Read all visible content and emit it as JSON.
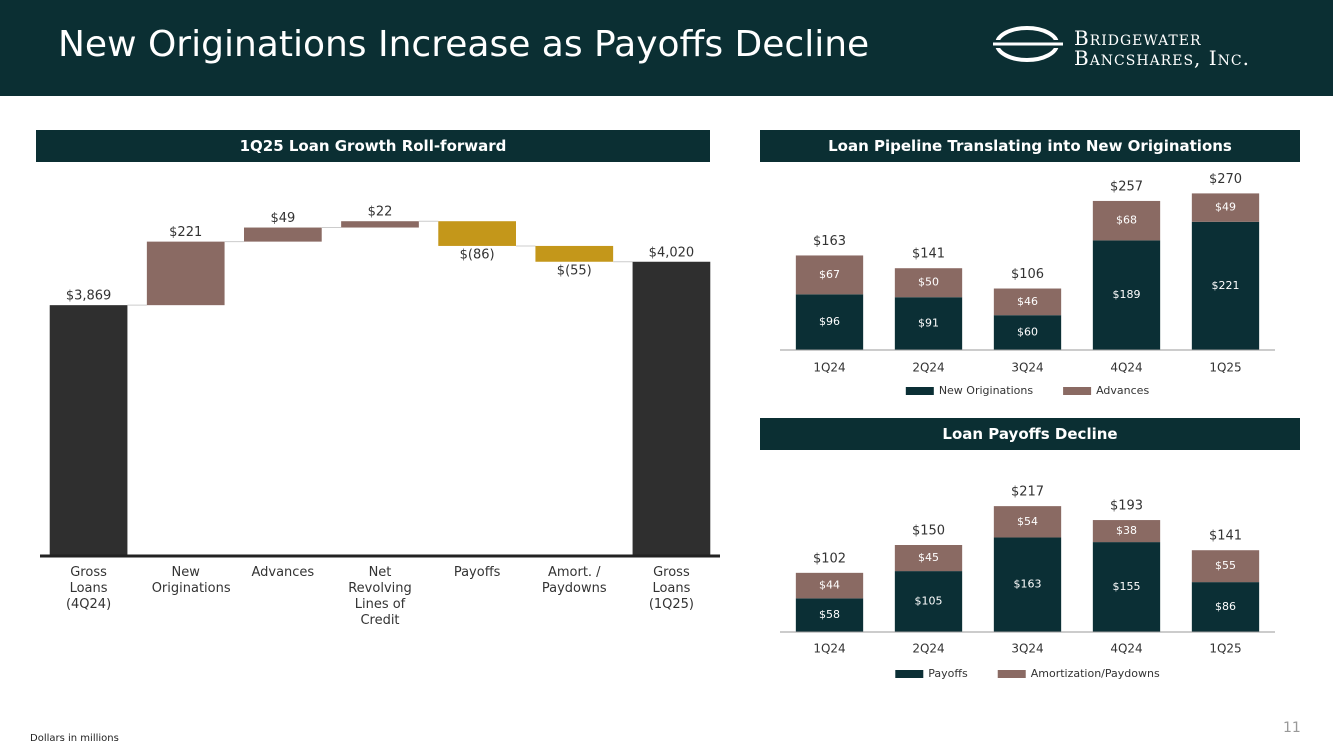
{
  "header": {
    "title": "New Originations Increase as Payoffs Decline",
    "logo_line1": "Bridgewater",
    "logo_line2": "Bancshares, Inc."
  },
  "chart_data": [
    {
      "type": "waterfall",
      "title": "1Q25 Loan Growth Roll-forward",
      "categories": [
        "Gross Loans (4Q24)",
        "New Originations",
        "Advances",
        "Net Revolving Lines of Credit",
        "Payoffs",
        "Amort. / Paydowns",
        "Gross Loans (1Q25)"
      ],
      "measures": [
        "absolute",
        "relative",
        "relative",
        "relative",
        "relative",
        "relative",
        "total"
      ],
      "values": [
        3869,
        221,
        49,
        22,
        -86,
        -55,
        4020
      ],
      "value_labels": [
        "$3,869",
        "$221",
        "$49",
        "$22",
        "$(86)",
        "$(55)",
        "$4,020"
      ],
      "colors": [
        "#2f2f2f",
        "#8a6a63",
        "#8a6a63",
        "#8a6a63",
        "#c4971a",
        "#c4971a",
        "#2f2f2f"
      ],
      "ylim": [
        3000,
        4200
      ]
    },
    {
      "type": "stacked_bar",
      "title": "Loan Pipeline Translating into New Originations",
      "categories": [
        "1Q24",
        "2Q24",
        "3Q24",
        "4Q24",
        "1Q25"
      ],
      "series": [
        {
          "name": "New Originations",
          "color": "#0b2f35",
          "values": [
            96,
            91,
            60,
            189,
            221
          ],
          "value_labels": [
            "$96",
            "$91",
            "$60",
            "$189",
            "$221"
          ]
        },
        {
          "name": "Advances",
          "color": "#8a6a63",
          "values": [
            67,
            50,
            46,
            68,
            49
          ],
          "value_labels": [
            "$67",
            "$50",
            "$46",
            "$68",
            "$49"
          ]
        }
      ],
      "totals": [
        163,
        141,
        106,
        257,
        270
      ],
      "total_labels": [
        "$163",
        "$141",
        "$106",
        "$257",
        "$270"
      ],
      "ylim": [
        0,
        300
      ],
      "legend": "bottom"
    },
    {
      "type": "stacked_bar",
      "title": "Loan Payoffs Decline",
      "categories": [
        "1Q24",
        "2Q24",
        "3Q24",
        "4Q24",
        "1Q25"
      ],
      "series": [
        {
          "name": "Payoffs",
          "color": "#0b2f35",
          "values": [
            58,
            105,
            163,
            155,
            86
          ],
          "value_labels": [
            "$58",
            "$105",
            "$163",
            "$155",
            "$86"
          ]
        },
        {
          "name": "Amortization/Paydowns",
          "color": "#8a6a63",
          "values": [
            44,
            45,
            54,
            38,
            55
          ],
          "value_labels": [
            "$44",
            "$45",
            "$54",
            "$38",
            "$55"
          ]
        }
      ],
      "totals": [
        102,
        150,
        217,
        193,
        141
      ],
      "total_labels": [
        "$102",
        "$150",
        "$217",
        "$193",
        "$141"
      ],
      "ylim": [
        0,
        250
      ],
      "legend": "bottom"
    }
  ],
  "footnote": "Dollars in millions",
  "page_number": 11
}
